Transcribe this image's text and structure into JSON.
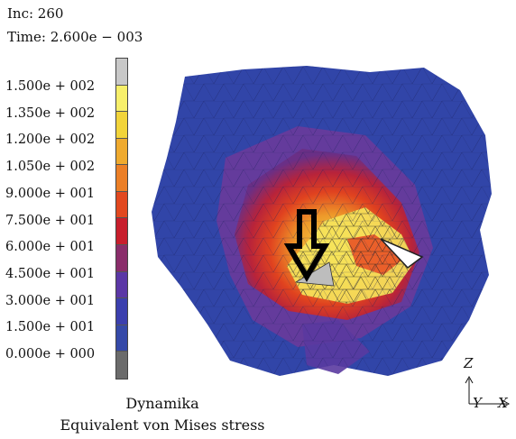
{
  "header": {
    "increment": "Inc: 260",
    "time": "Time: 2.600e − 003"
  },
  "legend": {
    "labels": [
      "1.500e + 002",
      "1.350e + 002",
      "1.200e + 002",
      "1.050e + 002",
      "9.000e + 001",
      "7.500e + 001",
      "6.000e + 001",
      "4.500e + 001",
      "3.000e + 001",
      "1.500e + 001",
      "0.000e + 000"
    ],
    "colors": [
      "#c8c8c8",
      "#f7ef6a",
      "#f2d43a",
      "#efaa2e",
      "#ec7f26",
      "#e2481f",
      "#c81e2c",
      "#8a2d6a",
      "#5b37a6",
      "#3b3fae",
      "#3549a8",
      "#6b6b6b"
    ]
  },
  "caption": {
    "line1": "Dynamika",
    "line2": "Equivalent von Mises stress"
  },
  "axes": {
    "z": "Z",
    "y": "Y",
    "x": "X"
  }
}
